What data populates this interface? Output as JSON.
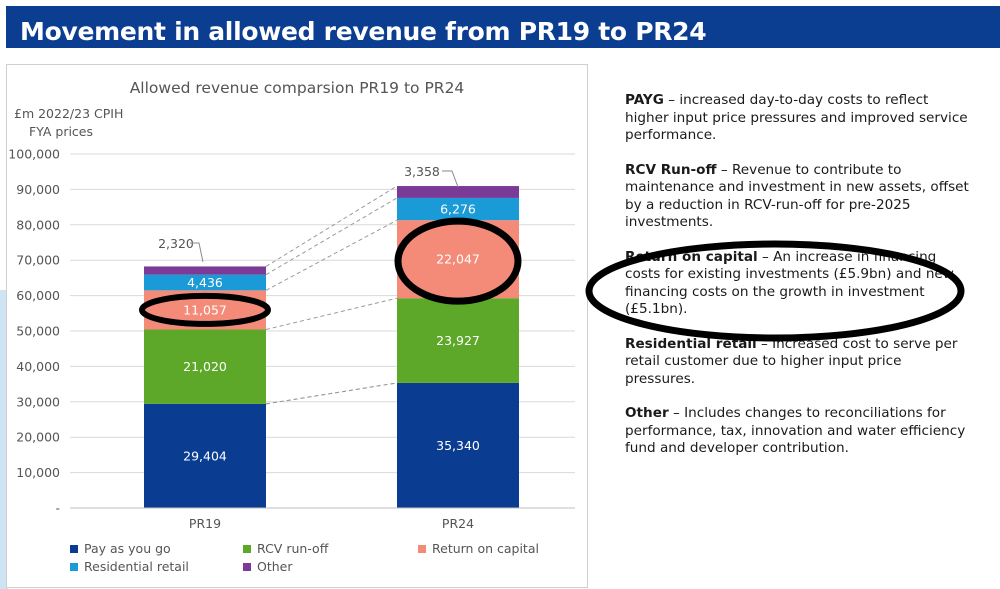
{
  "banner": {
    "title": "Movement in allowed revenue from PR19 to PR24"
  },
  "colors": {
    "banner": "#0b3d91",
    "payg": "#0a3d91",
    "rcv": "#5ea829",
    "return_on_capital": "#f48b78",
    "residential_retail": "#1a9ad6",
    "other": "#7b3a96",
    "highlight": "#000000"
  },
  "chart_data": {
    "type": "bar",
    "stacked": true,
    "title": "Allowed revenue comparsion PR19 to PR24",
    "ylabel": "£m 2022/23 CPIH FYA prices",
    "ylabel_lines": [
      "£m 2022/23 CPIH",
      "FYA prices"
    ],
    "ylim": [
      0,
      100000
    ],
    "yticks": [
      0,
      10000,
      20000,
      30000,
      40000,
      50000,
      60000,
      70000,
      80000,
      90000,
      100000
    ],
    "ytick_labels": [
      "-",
      "10,000",
      "20,000",
      "30,000",
      "40,000",
      "50,000",
      "60,000",
      "70,000",
      "80,000",
      "90,000",
      "100,000"
    ],
    "grid": true,
    "legend_position": "bottom",
    "categories": [
      "PR19",
      "PR24"
    ],
    "series": [
      {
        "name": "Pay as you go",
        "key": "payg",
        "values": [
          29404,
          35340
        ],
        "labels": [
          "29,404",
          "35,340"
        ]
      },
      {
        "name": "RCV run-off",
        "key": "rcv",
        "values": [
          21020,
          23927
        ],
        "labels": [
          "21,020",
          "23,927"
        ]
      },
      {
        "name": "Return on capital",
        "key": "return_on_capital",
        "values": [
          11057,
          22047
        ],
        "labels": [
          "11,057",
          "22,047"
        ]
      },
      {
        "name": "Residential retail",
        "key": "residential_retail",
        "values": [
          4436,
          6276
        ],
        "labels": [
          "4,436",
          "6,276"
        ]
      },
      {
        "name": "Other",
        "key": "other",
        "values": [
          2320,
          3358
        ],
        "labels": [
          "2,320",
          "3,358"
        ]
      }
    ],
    "highlighted": [
      "Return on capital"
    ]
  },
  "notes": [
    {
      "term": "PAYG",
      "text": " – increased day-to-day costs to reflect higher input price pressures and improved service performance."
    },
    {
      "term": "RCV Run-off",
      "text": " – Revenue to contribute to maintenance and investment in new assets, offset by a reduction in RCV-run-off for pre-2025 investments."
    },
    {
      "term": "Return on capital",
      "text": " – An increase in financing costs for existing investments (£5.9bn) and new financing costs on the growth in investment (£5.1bn)."
    },
    {
      "term": "Residential retail",
      "text": " – Increased cost to serve per retail customer due to higher input price pressures."
    },
    {
      "term": "Other",
      "text": " – Includes changes to reconciliations for performance, tax, innovation and water efficiency fund and developer contribution."
    }
  ]
}
